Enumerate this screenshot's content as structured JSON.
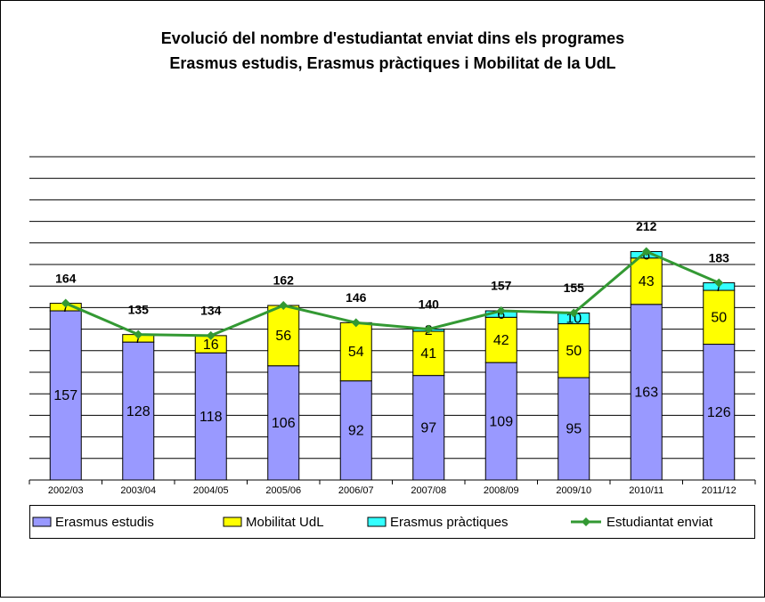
{
  "chart_data": {
    "type": "bar",
    "title": [
      "Evolució del nombre d'estudiantat enviat dins els programes",
      "Erasmus estudis, Erasmus pràctiques i Mobilitat de la UdL"
    ],
    "categories": [
      "2002/03",
      "2003/04",
      "2004/05",
      "2005/06",
      "2006/07",
      "2007/08",
      "2008/09",
      "2009/10",
      "2010/11",
      "2011/12"
    ],
    "series": [
      {
        "name": "Erasmus estudis",
        "color": "#9999ff",
        "values": [
          157,
          128,
          118,
          106,
          92,
          97,
          109,
          95,
          163,
          126
        ]
      },
      {
        "name": "Mobilitat UdL",
        "color": "#ffff00",
        "values": [
          7,
          7,
          16,
          56,
          54,
          41,
          42,
          50,
          43,
          50
        ]
      },
      {
        "name": "Erasmus pràctiques",
        "color": "#33ffff",
        "values": [
          null,
          null,
          null,
          null,
          null,
          2,
          6,
          10,
          6,
          7
        ]
      },
      {
        "name": "Estudiantat enviat",
        "color": "#339933",
        "type": "line",
        "values": [
          164,
          135,
          134,
          162,
          146,
          140,
          157,
          155,
          212,
          183
        ]
      }
    ],
    "ylim": [
      0,
      300
    ],
    "yticks": [
      0,
      20,
      40,
      60,
      80,
      100,
      120,
      140,
      160,
      180,
      200,
      220,
      240,
      260,
      280,
      300
    ],
    "grid": true,
    "legend": "bottom"
  }
}
